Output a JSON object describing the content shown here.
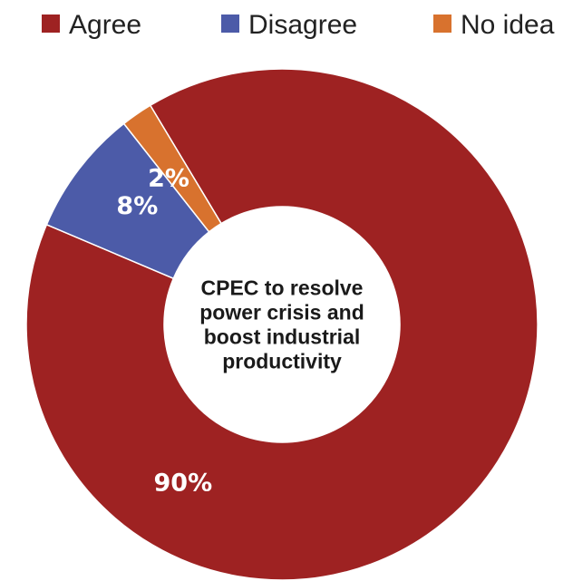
{
  "chart_data": {
    "type": "pie",
    "variant": "donut",
    "center_label": [
      "CPEC to resolve",
      "power crisis and",
      "boost industrial",
      "productivity"
    ],
    "legend_position": "top",
    "slices": [
      {
        "name": "Agree",
        "value": 90,
        "label": "90%",
        "color": "#9e2222"
      },
      {
        "name": "Disagree",
        "value": 8,
        "label": "8%",
        "color": "#4c5ba8"
      },
      {
        "name": "No idea",
        "value": 2,
        "label": "2%",
        "color": "#d8722e"
      }
    ]
  }
}
